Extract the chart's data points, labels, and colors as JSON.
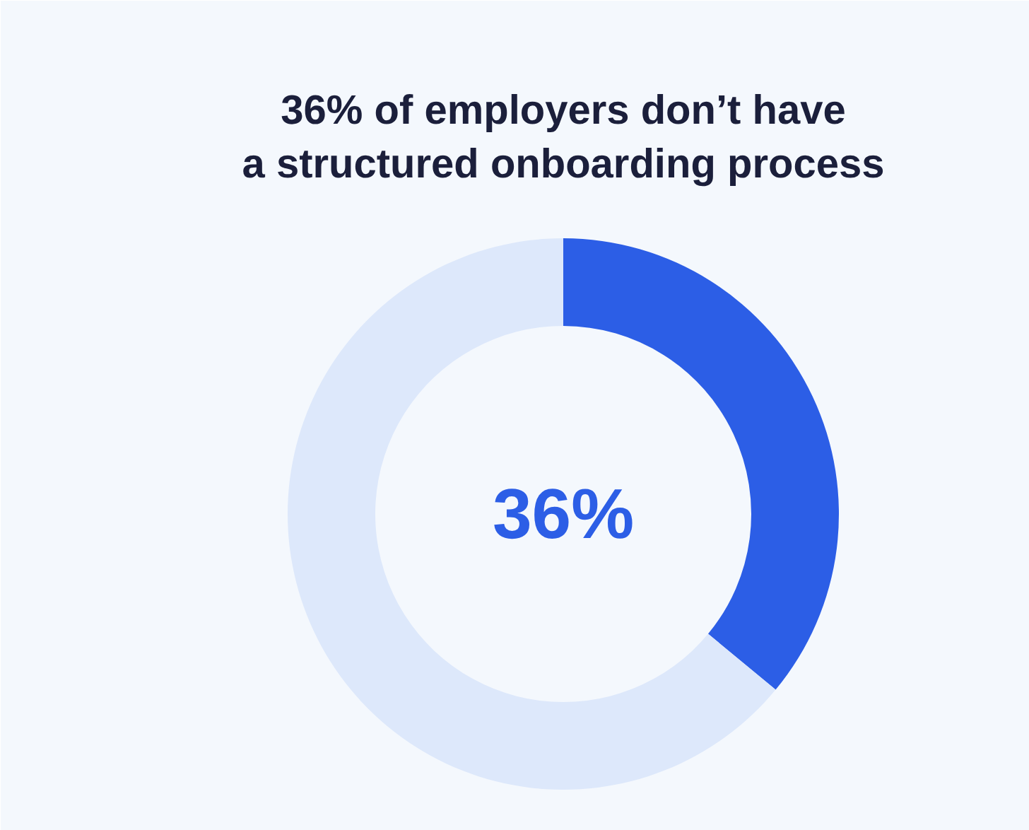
{
  "chart_data": {
    "type": "donut",
    "title": "36% of employers don’t have\na structured onboarding process",
    "categories": [
      null,
      null
    ],
    "values": [
      36,
      64
    ],
    "colors": [
      "#2c5ee6",
      "#dde8fb"
    ],
    "value_labels": [
      "36%",
      null
    ]
  }
}
